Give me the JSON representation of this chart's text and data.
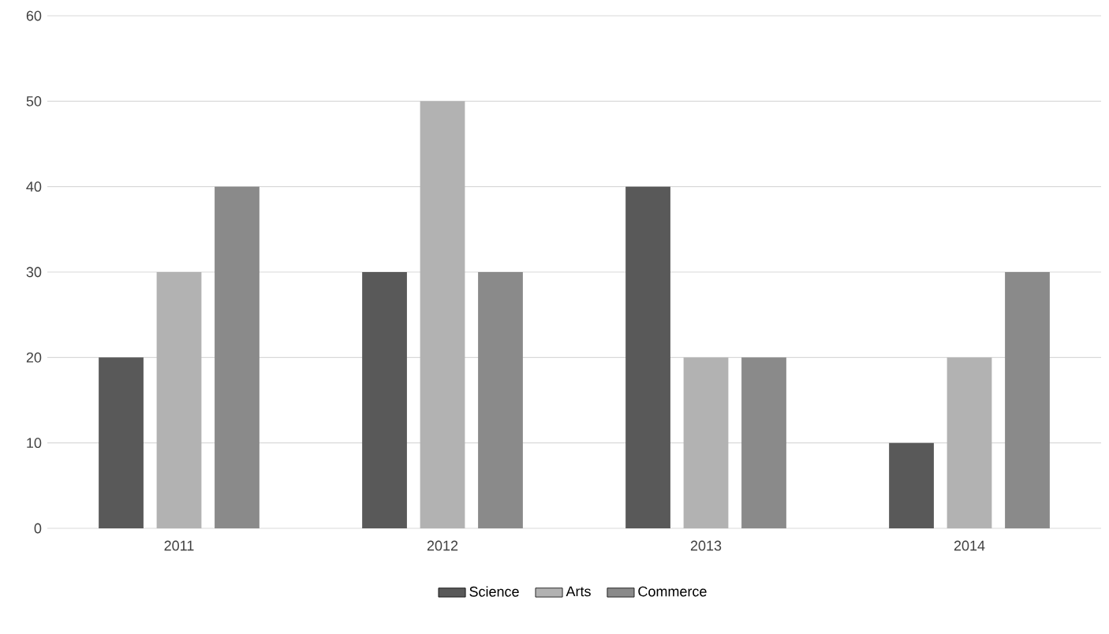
{
  "chart_data": {
    "type": "bar",
    "categories": [
      "2011",
      "2012",
      "2013",
      "2014"
    ],
    "series": [
      {
        "name": "Science",
        "color": "#595959",
        "values": [
          20,
          30,
          40,
          10
        ]
      },
      {
        "name": "Arts",
        "color": "#b2b2b2",
        "values": [
          30,
          50,
          20,
          20
        ]
      },
      {
        "name": "Commerce",
        "color": "#8a8a8a",
        "values": [
          40,
          30,
          20,
          30
        ]
      }
    ],
    "ylim": [
      0,
      60
    ],
    "yticks": [
      0,
      10,
      20,
      30,
      40,
      50,
      60
    ],
    "grid": "y",
    "legend": "bottom"
  }
}
